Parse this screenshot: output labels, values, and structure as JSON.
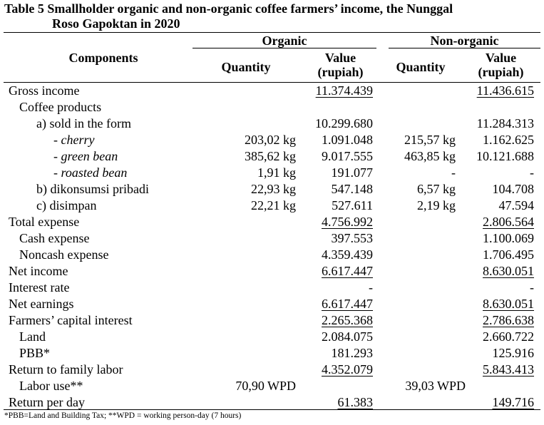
{
  "title": {
    "line1": "Table 5  Smallholder organic and non-organic coffee farmers’ income, the Nunggal",
    "line2": "Roso Gapoktan in 2020"
  },
  "header": {
    "components": "Components",
    "organic": "Organic",
    "non_organic": "Non-organic",
    "quantity": "Quantity",
    "value_line1": "Value",
    "value_line2": "(rupiah)"
  },
  "rows": [
    {
      "label": "Gross income",
      "q1": "",
      "v1": "11.374.439",
      "q2": "",
      "v2": "11.436.615"
    },
    {
      "label": "Coffee products",
      "q1": "",
      "v1": "",
      "q2": "",
      "v2": ""
    },
    {
      "label": "a) sold in the form",
      "q1": "",
      "v1": "10.299.680",
      "q2": "",
      "v2": "11.284.313"
    },
    {
      "label": "- cherry",
      "q1": "203,02 kg",
      "v1": "1.091.048",
      "q2": "215,57 kg",
      "v2": "1.162.625"
    },
    {
      "label": "- green bean",
      "q1": "385,62 kg",
      "v1": "9.017.555",
      "q2": "463,85 kg",
      "v2": "10.121.688"
    },
    {
      "label": "- roasted bean",
      "q1": "1,91 kg",
      "v1": "191.077",
      "q2": "-",
      "v2": "-"
    },
    {
      "label": "b) dikonsumsi pribadi",
      "q1": "22,93 kg",
      "v1": "547.148",
      "q2": "6,57 kg",
      "v2": "104.708"
    },
    {
      "label": "c) disimpan",
      "q1": "22,21 kg",
      "v1": "527.611",
      "q2": "2,19 kg",
      "v2": "47.594"
    },
    {
      "label": "Total expense",
      "q1": "",
      "v1": "4.756.992",
      "q2": "",
      "v2": "2.806.564"
    },
    {
      "label": "Cash expense",
      "q1": "",
      "v1": "397.553",
      "q2": "",
      "v2": "1.100.069"
    },
    {
      "label": "Noncash expense",
      "q1": "",
      "v1": "4.359.439",
      "q2": "",
      "v2": "1.706.495"
    },
    {
      "label": "Net income",
      "q1": "",
      "v1": "6.617.447",
      "q2": "",
      "v2": "8.630.051"
    },
    {
      "label": "Interest rate",
      "q1": "",
      "v1": "-",
      "q2": "",
      "v2": "-"
    },
    {
      "label": "Net earnings",
      "q1": "",
      "v1": "6.617.447",
      "q2": "",
      "v2": "8.630.051"
    },
    {
      "label": "Farmers’ capital interest",
      "q1": "",
      "v1": "2.265.368",
      "q2": "",
      "v2": "2.786.638"
    },
    {
      "label": "Land",
      "q1": "",
      "v1": "2.084.075",
      "q2": "",
      "v2": "2.660.722"
    },
    {
      "label": "PBB*",
      "q1": "",
      "v1": "181.293",
      "q2": "",
      "v2": "125.916"
    },
    {
      "label": "Return to family labor",
      "q1": "",
      "v1": "4.352.079",
      "q2": "",
      "v2": "5.843.413"
    },
    {
      "label": "Labor use**",
      "q1": "70,90 WPD",
      "v1": "",
      "q2": "39,03 WPD",
      "v2": ""
    },
    {
      "label": "Return per day",
      "q1": "",
      "v1": "61.383",
      "q2": "",
      "v2": "149.716"
    }
  ],
  "footnote": "*PBB=Land and Building Tax; **WPD = working person-day (7 hours)"
}
